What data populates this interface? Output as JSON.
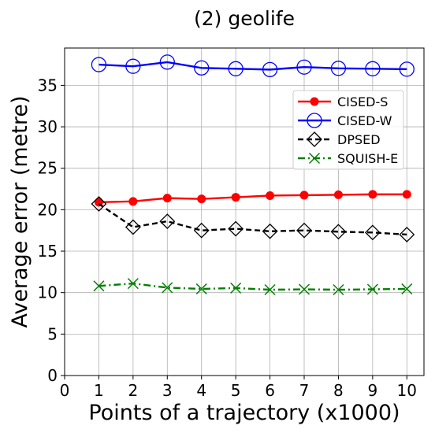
{
  "chart_data": {
    "type": "line",
    "title": "(2) geolife",
    "xlabel": "Points of a trajectory (x1000)",
    "ylabel": "Average error (metre)",
    "xlim": [
      0,
      10.5
    ],
    "ylim": [
      0,
      39.5
    ],
    "xticks": [
      "0",
      "1",
      "2",
      "3",
      "4",
      "5",
      "6",
      "7",
      "8",
      "9",
      "10"
    ],
    "yticks": [
      "0",
      "5",
      "10",
      "15",
      "20",
      "25",
      "30",
      "35"
    ],
    "grid": true,
    "legend_position": "upper-right",
    "x": [
      1,
      2,
      3,
      4,
      5,
      6,
      7,
      8,
      9,
      10
    ],
    "series": [
      {
        "name": "CISED-S",
        "color": "#ff0000",
        "linestyle": "solid",
        "marker": "filled-circle",
        "values": [
          20.9,
          21.0,
          21.4,
          21.3,
          21.5,
          21.7,
          21.75,
          21.8,
          21.85,
          21.85
        ]
      },
      {
        "name": "CISED-W",
        "color": "#0000ff",
        "linestyle": "solid",
        "marker": "open-circle",
        "values": [
          37.5,
          37.3,
          37.8,
          37.1,
          37.0,
          36.9,
          37.2,
          37.05,
          37.0,
          36.95
        ]
      },
      {
        "name": "DPSED",
        "color": "#000000",
        "linestyle": "dashed",
        "marker": "open-diamond",
        "values": [
          20.7,
          17.9,
          18.6,
          17.5,
          17.7,
          17.4,
          17.5,
          17.35,
          17.25,
          17.0
        ]
      },
      {
        "name": "SQUISH-E",
        "color": "#008000",
        "linestyle": "dashdot",
        "marker": "x",
        "values": [
          10.8,
          11.1,
          10.6,
          10.45,
          10.55,
          10.35,
          10.4,
          10.35,
          10.4,
          10.45
        ]
      }
    ]
  }
}
